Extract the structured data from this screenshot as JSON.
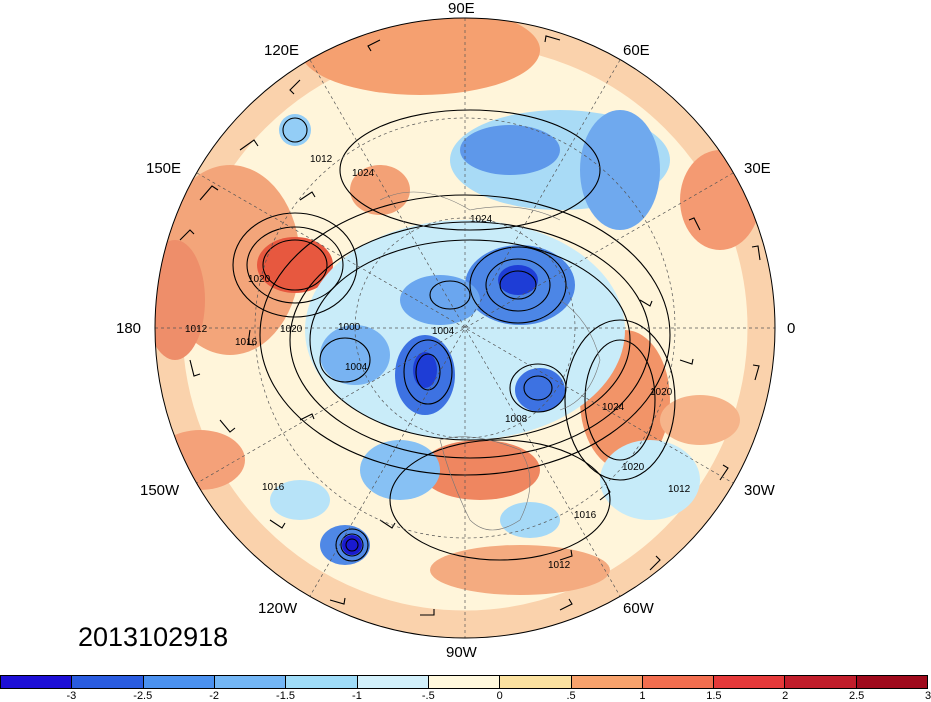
{
  "timestamp": "2013102918",
  "longitude_labels": {
    "lon_90E": "90E",
    "lon_60E": "60E",
    "lon_30E": "30E",
    "lon_0": "0",
    "lon_30W": "30W",
    "lon_60W": "60W",
    "lon_90W": "90W",
    "lon_120W": "120W",
    "lon_150W": "150W",
    "lon_180": "180",
    "lon_150E": "150E",
    "lon_120E": "120E"
  },
  "isobar_labels": [
    "1012",
    "1024",
    "1024",
    "1020",
    "1020",
    "1016",
    "1012",
    "1000",
    "1004",
    "1008",
    "1024",
    "1020",
    "1020",
    "1012",
    "1016",
    "1012",
    "1016",
    "1004"
  ],
  "colorbar": {
    "colors": [
      "#1d0fd6",
      "#2a5ce0",
      "#4b91ef",
      "#73b6f5",
      "#9fdcf8",
      "#d2f0fb",
      "#fff8dd",
      "#fbe1a0",
      "#f7a26c",
      "#f26e4f",
      "#e5393a",
      "#c11d2b",
      "#9f0a1c"
    ],
    "ticks": [
      "-3",
      "-2.5",
      "-2",
      "-1.5",
      "-1",
      "-.5",
      "0",
      ".5",
      "1",
      "1.5",
      "2",
      "2.5",
      "3"
    ]
  }
}
